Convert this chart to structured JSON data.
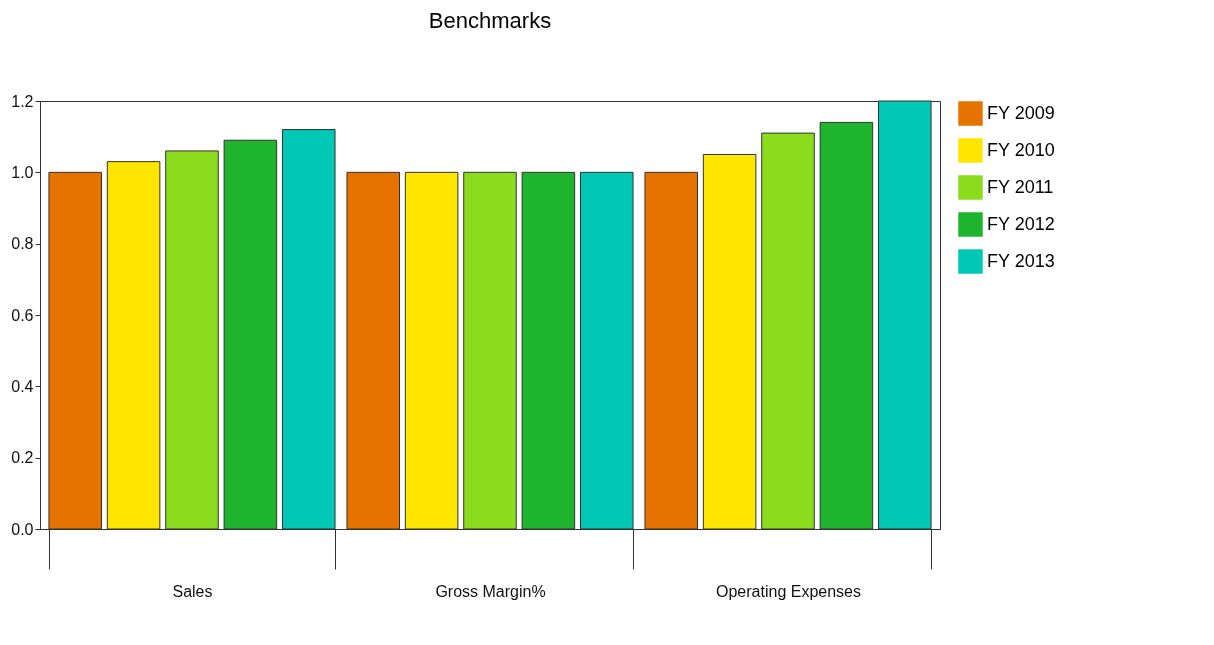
{
  "chart_data": {
    "type": "bar",
    "title": "Benchmarks",
    "categories": [
      "Sales",
      "Gross Margin%",
      "Operating Expenses"
    ],
    "series": [
      {
        "name": "FY 2009",
        "color": "#e67300",
        "values": [
          1.0,
          1.0,
          1.0
        ]
      },
      {
        "name": "FY 2010",
        "color": "#ffe600",
        "values": [
          1.03,
          1.0,
          1.05
        ]
      },
      {
        "name": "FY 2011",
        "color": "#8cdc1e",
        "values": [
          1.06,
          1.0,
          1.11
        ]
      },
      {
        "name": "FY 2012",
        "color": "#1eb42d",
        "values": [
          1.09,
          1.0,
          1.14
        ]
      },
      {
        "name": "FY 2013",
        "color": "#00c8b4",
        "values": [
          1.12,
          1.0,
          1.2
        ]
      }
    ],
    "ylim": [
      0,
      1.2
    ],
    "yticks": [
      {
        "value": 0,
        "label": "0.0"
      },
      {
        "value": 0.2,
        "label": "0.2"
      },
      {
        "value": 0.4,
        "label": "0.4"
      },
      {
        "value": 0.6,
        "label": "0.6"
      },
      {
        "value": 0.8,
        "label": "0.8"
      },
      {
        "value": 1,
        "label": "1.0"
      },
      {
        "value": 1.2,
        "label": "1.2"
      }
    ],
    "grid": false,
    "legend": "right"
  }
}
